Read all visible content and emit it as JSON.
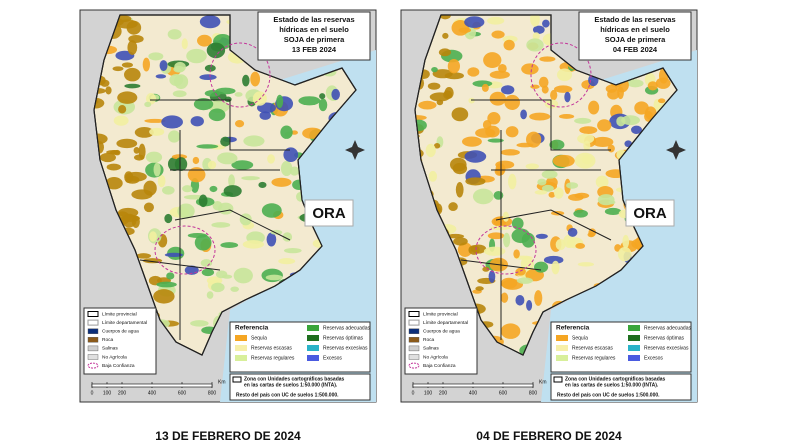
{
  "maps": [
    {
      "title": [
        "Estado de las reservas",
        "hídricas en el suelo",
        "SOJA de primera",
        "13 FEB 2024"
      ],
      "logo": "ORA",
      "legend": [
        "Límite provincial",
        "Límite departamental",
        "Cuerpos de agua",
        "Roca",
        "Salinas",
        "No Agrícola",
        "Baja Confianza"
      ],
      "reference_title": "Referencia",
      "reference": [
        "Sequía",
        "Reservas escasas",
        "Reservas regulares",
        "Reservas adecuadas",
        "Reservas óptimas",
        "Reservas excesivas",
        "Excesos"
      ],
      "note": [
        "Zona con Unidades cartográficas basadas",
        "en las cartas de suelos 1:50.000 (INTA).",
        "Resto del país con UC de suelos 1:500.000."
      ],
      "scale": [
        0,
        100,
        200,
        400,
        600,
        800
      ],
      "scale_unit": "Km",
      "caption": "13 DE FEBRERO DE 2024"
    },
    {
      "title": [
        "Estado de las reservas",
        "hídricas en el suelo",
        "SOJA de primera",
        "04 FEB 2024"
      ],
      "logo": "ORA",
      "legend": [
        "Límite provincial",
        "Límite departamental",
        "Cuerpos de agua",
        "Roca",
        "Salinas",
        "No Agrícola",
        "Baja Confianza"
      ],
      "reference_title": "Referencia",
      "reference": [
        "Sequía",
        "Reservas escasas",
        "Reservas regulares",
        "Reservas adecuadas",
        "Reservas óptimas",
        "Reservas excesivas",
        "Excesos"
      ],
      "note": [
        "Zona con Unidades cartográficas basadas",
        "en las cartas de suelos 1:50.000 (INTA).",
        "Resto del país con UC de suelos 1:500.000."
      ],
      "scale": [
        0,
        100,
        200,
        400,
        600,
        800
      ],
      "scale_unit": "Km",
      "caption": "04 DE FEBRERO DE 2024"
    }
  ]
}
